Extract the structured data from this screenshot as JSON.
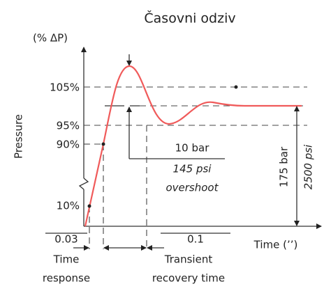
{
  "title": "Časovni odziv",
  "y_axis": {
    "unit": "(% ΔP)",
    "label": "Pressure",
    "ticks": [
      "105%",
      "95%",
      "90%",
      "10%"
    ]
  },
  "x_axis": {
    "label": "Time (’’)"
  },
  "overshoot": {
    "bar": "10 bar",
    "psi": "145 psi",
    "label": "overshoot"
  },
  "setpoint": {
    "bar": "175 bar",
    "psi": "2500 psi"
  },
  "response": {
    "time": "0.03",
    "label_1": "Time",
    "label_2": "response"
  },
  "recovery": {
    "time": "0.1",
    "label_1": "Transient",
    "label_2": "recovery time"
  }
}
